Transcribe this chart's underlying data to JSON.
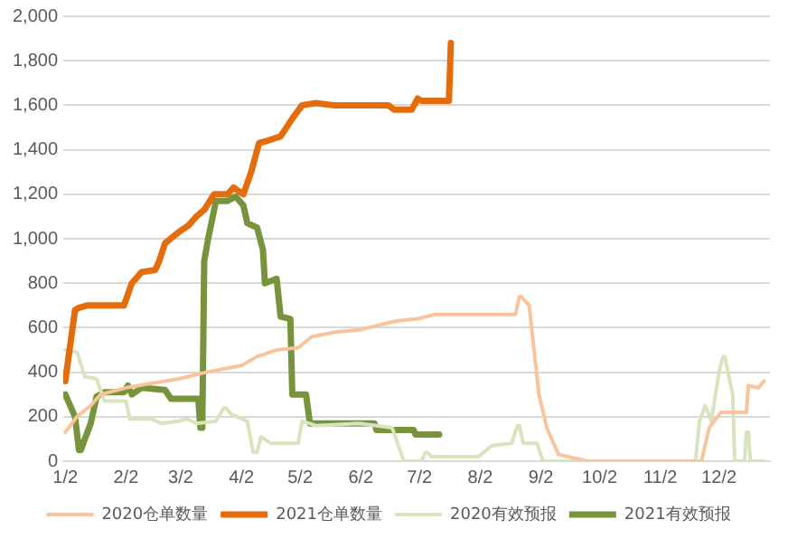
{
  "chart_data": {
    "type": "line",
    "xlim": [
      "--01-01",
      "--12-28"
    ],
    "xticks": [
      {
        "value": "--01-02",
        "label": "1/2"
      },
      {
        "value": "--02-02",
        "label": "2/2"
      },
      {
        "value": "--03-02",
        "label": "3/2"
      },
      {
        "value": "--04-02",
        "label": "4/2"
      },
      {
        "value": "--05-02",
        "label": "5/2"
      },
      {
        "value": "--06-02",
        "label": "6/2"
      },
      {
        "value": "--07-02",
        "label": "7/2"
      },
      {
        "value": "--08-02",
        "label": "8/2"
      },
      {
        "value": "--09-02",
        "label": "9/2"
      },
      {
        "value": "--10-02",
        "label": "10/2"
      },
      {
        "value": "--11-02",
        "label": "11/2"
      },
      {
        "value": "--12-02",
        "label": "12/2"
      }
    ],
    "ylim": [
      0,
      2000
    ],
    "yticks": [
      {
        "value": 0,
        "label": "0"
      },
      {
        "value": 200,
        "label": "200"
      },
      {
        "value": 400,
        "label": "400"
      },
      {
        "value": 600,
        "label": "600"
      },
      {
        "value": 800,
        "label": "800"
      },
      {
        "value": 1000,
        "label": "1,000"
      },
      {
        "value": 1200,
        "label": "1,200"
      },
      {
        "value": 1400,
        "label": "1,400"
      },
      {
        "value": 1600,
        "label": "1,600"
      },
      {
        "value": 1800,
        "label": "1,800"
      },
      {
        "value": 2000,
        "label": "2,000"
      }
    ],
    "grid": "y",
    "legend": "bottom",
    "marker": "none",
    "line_style": "solid",
    "series": [
      {
        "name": "2020仓单数量",
        "color": "#f9c49b",
        "x": [
          "--01-02",
          "--01-08",
          "--01-15",
          "--01-20",
          "--02-02",
          "--02-15",
          "--03-01",
          "--03-15",
          "--04-02",
          "--04-10",
          "--04-20",
          "--05-01",
          "--05-08",
          "--05-20",
          "--06-01",
          "--06-20",
          "--07-01",
          "--07-10",
          "--07-20",
          "--08-20",
          "--08-22",
          "--08-23",
          "--08-27",
          "--09-01",
          "--09-05",
          "--09-11",
          "--09-26",
          "--11-23",
          "--11-27",
          "--12-03",
          "--12-16",
          "--12-17",
          "--12-22",
          "--12-25"
        ],
        "values": [
          130,
          200,
          250,
          300,
          330,
          350,
          370,
          400,
          430,
          470,
          500,
          510,
          560,
          580,
          590,
          630,
          640,
          660,
          660,
          660,
          740,
          740,
          700,
          300,
          150,
          30,
          0,
          0,
          150,
          220,
          220,
          340,
          330,
          360
        ]
      },
      {
        "name": "2021仓单数量",
        "color": "#e46c0a",
        "x": [
          "--01-02",
          "--01-07",
          "--01-09",
          "--01-13",
          "--02-01",
          "--02-05",
          "--02-10",
          "--02-17",
          "--02-19",
          "--02-22",
          "--03-01",
          "--03-06",
          "--03-10",
          "--03-14",
          "--03-19",
          "--03-26",
          "--03-29",
          "--04-03",
          "--04-07",
          "--04-11",
          "--04-15",
          "--04-22",
          "--04-28",
          "--05-03",
          "--05-10",
          "--05-19",
          "--06-16",
          "--06-19",
          "--06-28",
          "--07-01",
          "--07-03",
          "--07-17",
          "--07-18"
        ],
        "values": [
          360,
          680,
          690,
          700,
          700,
          800,
          850,
          860,
          900,
          980,
          1030,
          1060,
          1100,
          1130,
          1200,
          1200,
          1230,
          1200,
          1300,
          1430,
          1440,
          1460,
          1540,
          1600,
          1610,
          1600,
          1600,
          1580,
          1580,
          1630,
          1620,
          1620,
          1880
        ]
      },
      {
        "name": "2020有效预报",
        "color": "#d7e4bd",
        "x": [
          "--01-02",
          "--01-08",
          "--01-12",
          "--01-18",
          "--01-22",
          "--02-02",
          "--02-04",
          "--02-15",
          "--02-20",
          "--03-01",
          "--03-05",
          "--03-10",
          "--03-20",
          "--03-24",
          "--03-25",
          "--03-28",
          "--04-05",
          "--04-08",
          "--04-10",
          "--04-12",
          "--04-17",
          "--05-01",
          "--05-03",
          "--05-10",
          "--06-01",
          "--06-18",
          "--06-24",
          "--07-03",
          "--07-05",
          "--07-06",
          "--07-08",
          "--08-01",
          "--08-08",
          "--08-18",
          "--08-21",
          "--08-22",
          "--08-24",
          "--08-31",
          "--09-03",
          "--11-20",
          "--11-22",
          "--11-25",
          "--11-28",
          "--12-02",
          "--12-04",
          "--12-05",
          "--12-07",
          "--12-09",
          "--12-10",
          "--12-15",
          "--12-16",
          "--12-17",
          "--12-18",
          "--12-25"
        ],
        "values": [
          500,
          490,
          380,
          370,
          270,
          270,
          190,
          190,
          170,
          180,
          190,
          170,
          180,
          240,
          240,
          210,
          180,
          40,
          40,
          110,
          80,
          80,
          180,
          160,
          170,
          150,
          0,
          0,
          40,
          40,
          20,
          20,
          70,
          80,
          160,
          160,
          80,
          80,
          0,
          0,
          180,
          250,
          180,
          400,
          470,
          470,
          380,
          300,
          0,
          0,
          130,
          130,
          0,
          0
        ]
      },
      {
        "name": "2021有效预报",
        "color": "#77933c",
        "x": [
          "--01-02",
          "--01-07",
          "--01-09",
          "--01-10",
          "--01-12",
          "--01-15",
          "--01-18",
          "--01-22",
          "--02-01",
          "--02-03",
          "--02-05",
          "--02-10",
          "--02-22",
          "--02-25",
          "--03-11",
          "--03-12",
          "--03-13",
          "--03-14",
          "--03-16",
          "--03-20",
          "--03-26",
          "--03-30",
          "--04-03",
          "--04-05",
          "--04-10",
          "--04-13",
          "--04-14",
          "--04-20",
          "--04-22",
          "--04-27",
          "--04-28",
          "--05-05",
          "--05-07",
          "--06-09",
          "--06-10",
          "--06-29",
          "--06-30",
          "--07-12"
        ],
        "values": [
          300,
          200,
          50,
          50,
          100,
          170,
          290,
          310,
          310,
          340,
          300,
          330,
          320,
          280,
          280,
          150,
          150,
          900,
          1000,
          1170,
          1170,
          1190,
          1150,
          1070,
          1050,
          950,
          800,
          820,
          650,
          640,
          300,
          300,
          170,
          170,
          140,
          140,
          120,
          120
        ]
      }
    ]
  }
}
